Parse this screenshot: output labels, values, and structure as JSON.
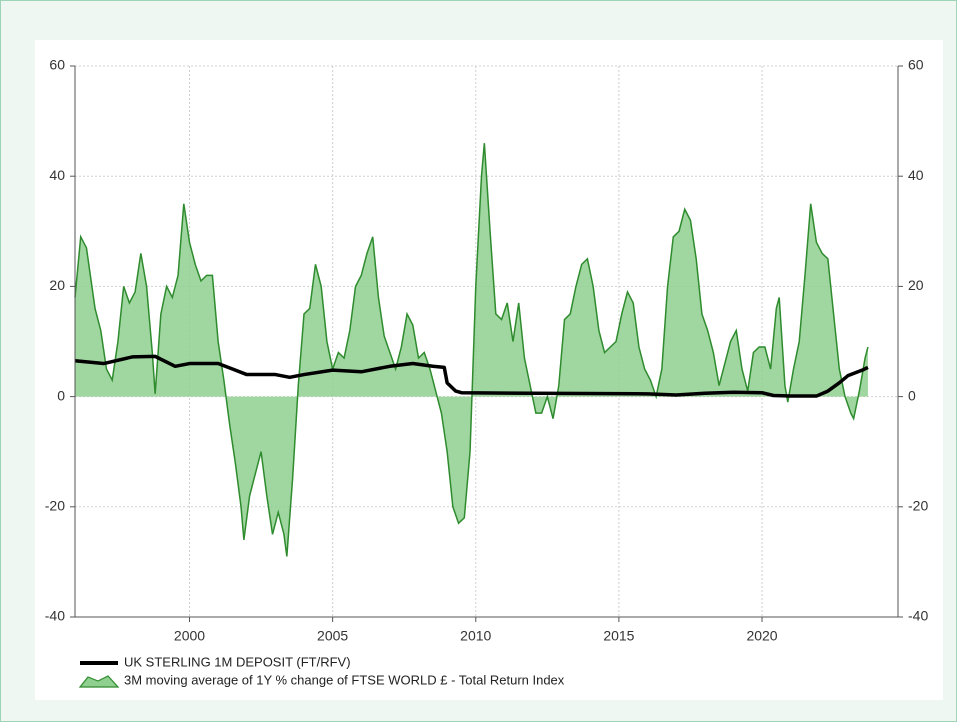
{
  "chart_data": {
    "type": "area",
    "xlim": [
      1996,
      2024.75
    ],
    "xticks": [
      2000,
      2005,
      2010,
      2015,
      2020
    ],
    "ylim": [
      -40,
      60
    ],
    "yticks": [
      -40,
      -20,
      0,
      20,
      40,
      60
    ],
    "y2lim": [
      -40,
      60
    ],
    "y2ticks": [
      -40,
      -20,
      0,
      20,
      40,
      60
    ],
    "grid": true,
    "legend": "bottom-left",
    "series": [
      {
        "name": "UK STERLING 1M DEPOSIT (FT/RFV)",
        "type": "line",
        "color": "#000000",
        "x": [
          1996,
          1997,
          1998,
          1998.8,
          1999.5,
          2000,
          2001,
          2001.5,
          2002,
          2003,
          2003.5,
          2004,
          2005,
          2006,
          2007,
          2007.8,
          2008.5,
          2008.9,
          2009.0,
          2009.3,
          2009.5,
          2012,
          2016,
          2017,
          2018,
          2019,
          2020,
          2020.4,
          2021,
          2021.9,
          2022.3,
          2022.7,
          2023,
          2023.5,
          2023.7
        ],
        "values": [
          6.5,
          6,
          7.2,
          7.3,
          5.5,
          6,
          6,
          5,
          4,
          4,
          3.5,
          4,
          4.8,
          4.5,
          5.5,
          6,
          5.5,
          5.3,
          2.5,
          1,
          0.7,
          0.6,
          0.5,
          0.3,
          0.6,
          0.8,
          0.7,
          0.2,
          0.1,
          0.1,
          1,
          2.5,
          3.8,
          4.8,
          5.3
        ]
      },
      {
        "name": "3M moving average of 1Y % change of FTSE WORLD £ - Total Return Index",
        "type": "area",
        "color": "#2e8b2e",
        "fill": "#8fcf8f",
        "x": [
          1996.0,
          1996.2,
          1996.4,
          1996.7,
          1996.9,
          1997.1,
          1997.3,
          1997.5,
          1997.7,
          1997.9,
          1998.1,
          1998.3,
          1998.5,
          1998.7,
          1998.8,
          1999.0,
          1999.2,
          1999.4,
          1999.6,
          1999.8,
          2000.0,
          2000.2,
          2000.4,
          2000.6,
          2000.8,
          2001.0,
          2001.2,
          2001.4,
          2001.6,
          2001.8,
          2001.9,
          2002.1,
          2002.3,
          2002.5,
          2002.7,
          2002.9,
          2003.1,
          2003.3,
          2003.4,
          2003.6,
          2003.8,
          2004.0,
          2004.2,
          2004.4,
          2004.6,
          2004.8,
          2005.0,
          2005.2,
          2005.4,
          2005.6,
          2005.8,
          2006.0,
          2006.2,
          2006.4,
          2006.6,
          2006.8,
          2007.0,
          2007.2,
          2007.4,
          2007.6,
          2007.8,
          2008.0,
          2008.2,
          2008.4,
          2008.6,
          2008.8,
          2009.0,
          2009.2,
          2009.4,
          2009.6,
          2009.8,
          2010.0,
          2010.2,
          2010.3,
          2010.5,
          2010.7,
          2010.9,
          2011.1,
          2011.3,
          2011.5,
          2011.7,
          2011.9,
          2012.1,
          2012.3,
          2012.5,
          2012.7,
          2012.9,
          2013.1,
          2013.3,
          2013.5,
          2013.7,
          2013.9,
          2014.1,
          2014.3,
          2014.5,
          2014.7,
          2014.9,
          2015.1,
          2015.3,
          2015.5,
          2015.7,
          2015.9,
          2016.1,
          2016.3,
          2016.5,
          2016.7,
          2016.9,
          2017.1,
          2017.3,
          2017.5,
          2017.7,
          2017.9,
          2018.1,
          2018.3,
          2018.5,
          2018.7,
          2018.9,
          2019.1,
          2019.3,
          2019.5,
          2019.7,
          2019.9,
          2020.1,
          2020.3,
          2020.5,
          2020.6,
          2020.8,
          2020.9,
          2021.1,
          2021.3,
          2021.5,
          2021.7,
          2021.9,
          2022.1,
          2022.3,
          2022.5,
          2022.7,
          2022.9,
          2023.1,
          2023.2,
          2023.4,
          2023.6,
          2023.7
        ],
        "values": [
          18,
          29,
          27,
          16,
          12,
          5,
          3,
          10,
          20,
          17,
          19,
          26,
          20,
          8,
          0.5,
          15,
          20,
          18,
          22,
          35,
          28,
          24,
          21,
          22,
          22,
          10,
          3,
          -5,
          -12,
          -20,
          -26,
          -18,
          -14,
          -10,
          -18,
          -25,
          -21,
          -25,
          -29,
          -15,
          2,
          15,
          16,
          24,
          20,
          10,
          5,
          8,
          7,
          12,
          20,
          22,
          26,
          29,
          18,
          11,
          8,
          5,
          9,
          15,
          13,
          7,
          8,
          5,
          1,
          -3,
          -10,
          -20,
          -23,
          -22,
          -10,
          20,
          40,
          46,
          30,
          15,
          14,
          17,
          10,
          17,
          7,
          2,
          -3,
          -3,
          0,
          -4,
          2,
          14,
          15,
          20,
          24,
          25,
          20,
          12,
          8,
          9,
          10,
          15,
          19,
          17,
          9,
          5,
          3,
          0,
          5,
          20,
          29,
          30,
          34,
          32,
          25,
          15,
          12,
          8,
          2,
          6,
          10,
          12,
          5,
          1,
          8,
          9,
          9,
          5,
          16,
          18,
          2,
          -1,
          5,
          10,
          22,
          35,
          28,
          26,
          25,
          15,
          5,
          0,
          -3,
          -4,
          1,
          7,
          9
        ]
      }
    ]
  }
}
